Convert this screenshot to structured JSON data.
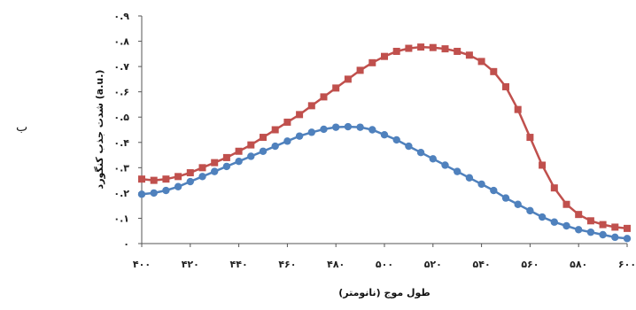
{
  "chart_data": {
    "type": "line",
    "panel_label": "ب",
    "xlabel": "طول موج (نانومتر)",
    "ylabel": "شدت جذب کنگورد (a.u.)",
    "xlim": [
      400,
      600
    ],
    "ylim": [
      0,
      0.9
    ],
    "x_ticks": [
      400,
      420,
      440,
      460,
      480,
      500,
      520,
      540,
      560,
      580,
      600
    ],
    "x_tick_labels": [
      "۴۰۰",
      "۴۲۰",
      "۴۴۰",
      "۴۶۰",
      "۴۸۰",
      "۵۰۰",
      "۵۲۰",
      "۵۴۰",
      "۵۶۰",
      "۵۸۰",
      "۶۰۰"
    ],
    "y_ticks": [
      0,
      0.1,
      0.2,
      0.3,
      0.4,
      0.5,
      0.6,
      0.7,
      0.8,
      0.9
    ],
    "y_tick_labels": [
      "۰",
      "۰.۱",
      "۰.۲",
      "۰.۳",
      "۰.۴",
      "۰.۵",
      "۰.۶",
      "۰.۷",
      "۰.۸",
      "۰.۹"
    ],
    "grid": false,
    "x": [
      400,
      405,
      410,
      415,
      420,
      425,
      430,
      435,
      440,
      445,
      450,
      455,
      460,
      465,
      470,
      475,
      480,
      485,
      490,
      495,
      500,
      505,
      510,
      515,
      520,
      525,
      530,
      535,
      540,
      545,
      550,
      555,
      560,
      565,
      570,
      575,
      580,
      585,
      590,
      595,
      600
    ],
    "series": [
      {
        "color": "#C0504D",
        "marker": "square",
        "values": [
          0.255,
          0.25,
          0.255,
          0.265,
          0.28,
          0.3,
          0.32,
          0.34,
          0.365,
          0.39,
          0.42,
          0.45,
          0.48,
          0.51,
          0.545,
          0.58,
          0.615,
          0.65,
          0.685,
          0.715,
          0.74,
          0.76,
          0.772,
          0.777,
          0.775,
          0.77,
          0.76,
          0.745,
          0.72,
          0.68,
          0.62,
          0.53,
          0.42,
          0.31,
          0.22,
          0.155,
          0.115,
          0.09,
          0.075,
          0.065,
          0.06
        ]
      },
      {
        "color": "#4F81BD",
        "marker": "circle",
        "values": [
          0.195,
          0.2,
          0.21,
          0.225,
          0.245,
          0.265,
          0.285,
          0.305,
          0.325,
          0.345,
          0.365,
          0.385,
          0.405,
          0.425,
          0.44,
          0.452,
          0.46,
          0.462,
          0.46,
          0.45,
          0.43,
          0.41,
          0.385,
          0.36,
          0.335,
          0.31,
          0.285,
          0.26,
          0.235,
          0.21,
          0.18,
          0.155,
          0.13,
          0.105,
          0.085,
          0.07,
          0.055,
          0.045,
          0.035,
          0.025,
          0.02
        ]
      }
    ]
  }
}
